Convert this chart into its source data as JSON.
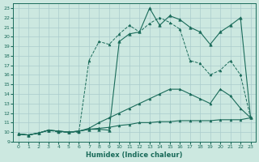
{
  "xlabel": "Humidex (Indice chaleur)",
  "xlim": [
    -0.5,
    23.5
  ],
  "ylim": [
    9,
    23.5
  ],
  "yticks": [
    9,
    10,
    11,
    12,
    13,
    14,
    15,
    16,
    17,
    18,
    19,
    20,
    21,
    22,
    23
  ],
  "xticks": [
    0,
    1,
    2,
    3,
    4,
    5,
    6,
    7,
    8,
    9,
    10,
    11,
    12,
    13,
    14,
    15,
    16,
    17,
    18,
    19,
    20,
    21,
    22,
    23
  ],
  "bg_color": "#cce8e0",
  "grid_color": "#aacccc",
  "line_color": "#1a6b5a",
  "lines": [
    {
      "x": [
        0,
        1,
        2,
        3,
        4,
        5,
        6,
        7,
        8,
        9,
        10,
        11,
        12,
        13,
        14,
        15,
        16,
        17,
        18,
        19,
        20,
        21,
        22,
        23
      ],
      "y": [
        9.8,
        9.7,
        9.9,
        10.2,
        10.1,
        10.0,
        10.1,
        10.3,
        10.3,
        10.2,
        19.5,
        20.3,
        20.5,
        23.0,
        21.2,
        22.2,
        21.8,
        21.0,
        20.5,
        19.2,
        20.5,
        21.2,
        22.0,
        11.5
      ],
      "linestyle": "-",
      "linewidth": 0.8,
      "marker": "^",
      "markersize": 2.5
    },
    {
      "x": [
        0,
        1,
        2,
        3,
        4,
        5,
        6,
        7,
        8,
        9,
        10,
        11,
        12,
        13,
        14,
        15,
        16,
        17,
        18,
        19,
        20,
        21,
        22,
        23
      ],
      "y": [
        9.8,
        9.7,
        9.9,
        10.2,
        10.0,
        10.0,
        10.0,
        17.5,
        19.5,
        19.2,
        20.3,
        21.2,
        20.5,
        21.4,
        22.0,
        21.5,
        20.8,
        17.5,
        17.2,
        16.0,
        16.5,
        17.5,
        16.0,
        11.5
      ],
      "linestyle": "--",
      "linewidth": 0.7,
      "marker": "^",
      "markersize": 2.0
    },
    {
      "x": [
        0,
        1,
        2,
        3,
        4,
        5,
        6,
        7,
        8,
        9,
        10,
        11,
        12,
        13,
        14,
        15,
        16,
        17,
        18,
        19,
        20,
        21,
        22,
        23
      ],
      "y": [
        9.8,
        9.7,
        9.9,
        10.2,
        10.1,
        10.0,
        10.1,
        10.4,
        11.0,
        11.5,
        12.0,
        12.5,
        13.0,
        13.5,
        14.0,
        14.5,
        14.5,
        14.0,
        13.5,
        13.0,
        14.5,
        13.8,
        12.5,
        11.5
      ],
      "linestyle": "-",
      "linewidth": 0.8,
      "marker": "^",
      "markersize": 2.0
    },
    {
      "x": [
        0,
        1,
        2,
        3,
        4,
        5,
        6,
        7,
        8,
        9,
        10,
        11,
        12,
        13,
        14,
        15,
        16,
        17,
        18,
        19,
        20,
        21,
        22,
        23
      ],
      "y": [
        9.8,
        9.7,
        9.9,
        10.2,
        10.1,
        10.0,
        10.1,
        10.3,
        10.4,
        10.5,
        10.7,
        10.8,
        11.0,
        11.0,
        11.1,
        11.1,
        11.2,
        11.2,
        11.2,
        11.2,
        11.3,
        11.3,
        11.3,
        11.5
      ],
      "linestyle": "-",
      "linewidth": 0.8,
      "marker": "^",
      "markersize": 2.0
    }
  ]
}
